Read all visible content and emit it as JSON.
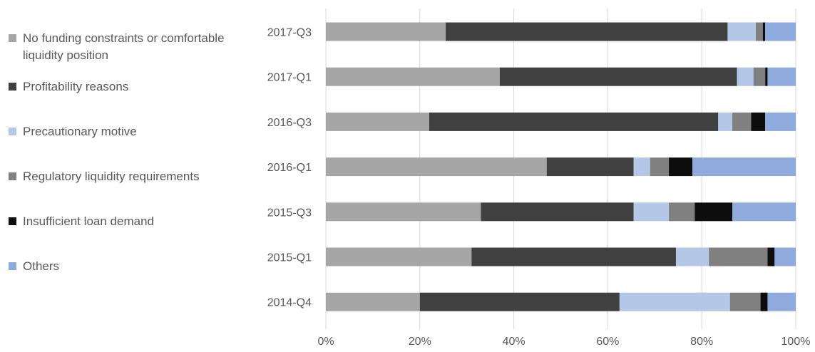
{
  "chart_data": {
    "type": "bar",
    "orientation": "horizontal",
    "stacked": "percent",
    "categories": [
      "2017-Q3",
      "2017-Q1",
      "2016-Q3",
      "2016-Q1",
      "2015-Q3",
      "2015-Q1",
      "2014-Q4"
    ],
    "series": [
      {
        "name": "No funding constraints or comfortable liquidity position",
        "color": "#a6a6a6",
        "values": [
          25.5,
          37.0,
          22.0,
          47.0,
          33.0,
          31.0,
          20.0
        ]
      },
      {
        "name": "Profitability reasons",
        "color": "#404040",
        "values": [
          60.0,
          50.5,
          61.5,
          18.5,
          32.5,
          43.5,
          42.5
        ]
      },
      {
        "name": "Precautionary motive",
        "color": "#b4c7e7",
        "values": [
          6.0,
          3.5,
          3.0,
          3.5,
          7.5,
          7.0,
          23.5
        ]
      },
      {
        "name": "Regulatory liquidity requirements",
        "color": "#808080",
        "values": [
          1.5,
          2.5,
          4.0,
          4.0,
          5.5,
          12.5,
          6.5
        ]
      },
      {
        "name": "Insufficient loan demand",
        "color": "#0d0d0d",
        "values": [
          0.5,
          0.5,
          3.0,
          5.0,
          8.0,
          1.5,
          1.5
        ]
      },
      {
        "name": "Others",
        "color": "#8faadc",
        "values": [
          6.5,
          6.0,
          6.5,
          22.0,
          13.5,
          4.5,
          6.0
        ]
      }
    ],
    "xlim": [
      0,
      100
    ],
    "xticks": [
      "0%",
      "20%",
      "40%",
      "60%",
      "80%",
      "100%"
    ],
    "grid": "vertical",
    "legend": "left"
  }
}
